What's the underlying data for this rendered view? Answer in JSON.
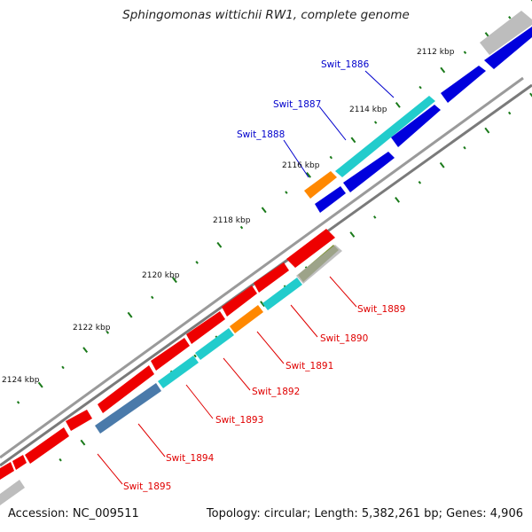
{
  "title": "Sphingomonas wittichii RW1, complete genome",
  "footer": {
    "accession": "Accession: NC_009511",
    "summary": "Topology: circular; Length: 5,382,261 bp; Genes: 4,906"
  },
  "colors": {
    "backbone": "#8a8a8a",
    "forward_label": "#0000cc",
    "reverse_label": "#e00000",
    "tick": "#1a7a1a"
  },
  "kbp_labels": [
    "2112 kbp",
    "2114 kbp",
    "2116 kbp",
    "2118 kbp",
    "2120 kbp",
    "2122 kbp",
    "2124 kbp"
  ],
  "gene_labels": [
    {
      "text": "Swit_1886",
      "strand": "forward"
    },
    {
      "text": "Swit_1887",
      "strand": "forward"
    },
    {
      "text": "Swit_1888",
      "strand": "forward"
    },
    {
      "text": "Swit_1889",
      "strand": "reverse"
    },
    {
      "text": "Swit_1890",
      "strand": "reverse"
    },
    {
      "text": "Swit_1891",
      "strand": "reverse"
    },
    {
      "text": "Swit_1892",
      "strand": "reverse"
    },
    {
      "text": "Swit_1893",
      "strand": "reverse"
    },
    {
      "text": "Swit_1894",
      "strand": "reverse"
    },
    {
      "text": "Swit_1895",
      "strand": "reverse"
    }
  ]
}
